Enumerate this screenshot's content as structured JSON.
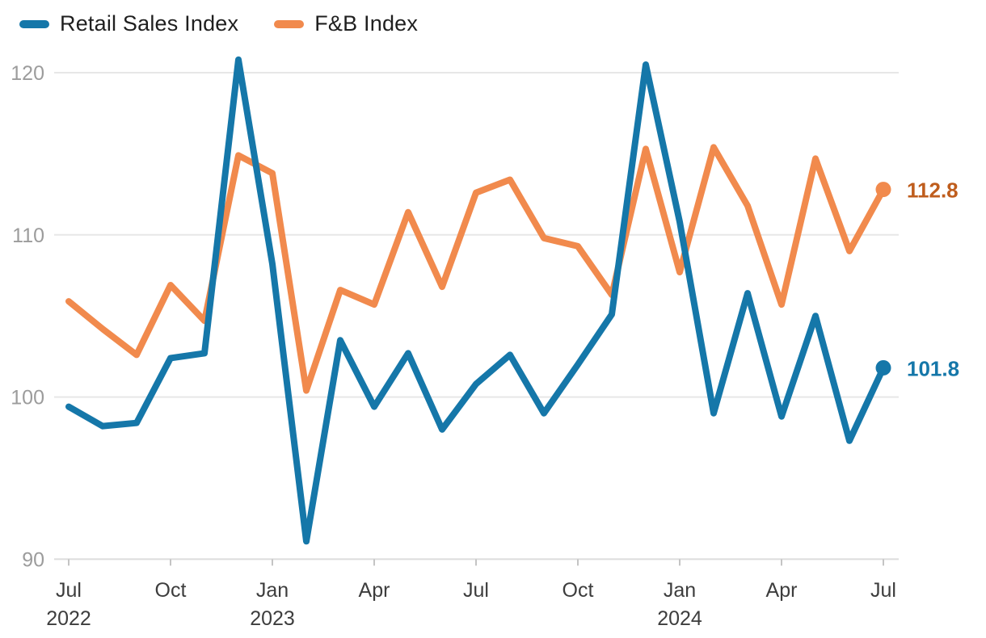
{
  "legend": {
    "items": [
      {
        "label": "Retail Sales Index"
      },
      {
        "label": "F&B Index"
      }
    ]
  },
  "chart_data": {
    "type": "line",
    "title": "",
    "x": [
      "Jul 2022",
      "Aug 2022",
      "Sep 2022",
      "Oct 2022",
      "Nov 2022",
      "Dec 2022",
      "Jan 2023",
      "Feb 2023",
      "Mar 2023",
      "Apr 2023",
      "May 2023",
      "Jun 2023",
      "Jul 2023",
      "Aug 2023",
      "Sep 2023",
      "Oct 2023",
      "Nov 2023",
      "Dec 2023",
      "Jan 2024",
      "Feb 2024",
      "Mar 2024",
      "Apr 2024",
      "May 2024",
      "Jun 2024",
      "Jul 2024"
    ],
    "series": [
      {
        "name": "Retail Sales Index",
        "color": "#1577a9",
        "values": [
          99.4,
          98.2,
          98.4,
          102.4,
          102.7,
          120.8,
          108.2,
          91.1,
          103.5,
          99.4,
          102.7,
          98.0,
          100.8,
          102.6,
          99.0,
          102.0,
          105.1,
          120.5,
          110.8,
          99.0,
          106.4,
          98.8,
          105.0,
          97.3,
          101.8
        ],
        "end_label": "101.8",
        "end_label_color": "#1577a9"
      },
      {
        "name": "F&B Index",
        "color": "#f18a4d",
        "values": [
          105.9,
          104.2,
          102.6,
          106.9,
          104.7,
          114.9,
          113.8,
          100.4,
          106.6,
          105.7,
          111.4,
          106.8,
          112.6,
          113.4,
          109.8,
          109.3,
          106.3,
          115.3,
          107.7,
          115.4,
          111.8,
          105.7,
          114.7,
          109.0,
          112.8
        ],
        "end_label": "112.8",
        "end_label_color": "#bf5d1d"
      }
    ],
    "y_axis": {
      "min": 90,
      "max": 120,
      "ticks": [
        120,
        110,
        100,
        90
      ]
    },
    "x_axis": {
      "ticks": [
        {
          "index": 0,
          "label": "Jul",
          "year": "2022"
        },
        {
          "index": 3,
          "label": "Oct"
        },
        {
          "index": 6,
          "label": "Jan",
          "year": "2023"
        },
        {
          "index": 9,
          "label": "Apr"
        },
        {
          "index": 12,
          "label": "Jul"
        },
        {
          "index": 15,
          "label": "Oct"
        },
        {
          "index": 18,
          "label": "Jan",
          "year": "2024"
        },
        {
          "index": 21,
          "label": "Apr"
        },
        {
          "index": 24,
          "label": "Jul"
        }
      ]
    },
    "ylim": [
      90,
      120
    ],
    "grid": "horizontal",
    "legend_position": "top-left"
  },
  "colors": {
    "gridline": "#e7e7e7",
    "axis_line": "#dcdcdc",
    "tick_mark": "#c4c4c4",
    "y_label": "#9c9c9c",
    "x_label": "#3d3d3d",
    "background": "#ffffff"
  }
}
